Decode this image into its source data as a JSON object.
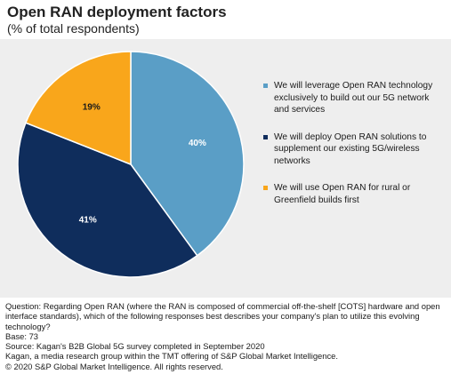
{
  "header": {
    "title": "Open RAN deployment factors",
    "subtitle": "(% of total respondents)"
  },
  "chart_data": {
    "type": "pie",
    "categories": [
      "We will leverage Open RAN technology exclusively to build out our 5G network and services",
      "We will deploy Open RAN solutions to supplement our existing 5G/wireless networks",
      "We will use Open RAN for rural or Greenfield builds first"
    ],
    "values": [
      40,
      41,
      19
    ],
    "value_labels": [
      "40%",
      "41%",
      "19%"
    ],
    "colors": [
      "#5a9ec6",
      "#0f2d5c",
      "#f9a61b"
    ],
    "label_colors": [
      "#ffffff",
      "#ffffff",
      "#1a1a1a"
    ],
    "legend_position": "right"
  },
  "footer": {
    "question": "Question: Regarding Open RAN (where the RAN is composed of commercial off-the-shelf [COTS] hardware and open interface standards), which of the following responses best describes your company's plan to utilize this evolving technology?",
    "base": "Base: 73",
    "source": "Source: Kagan's B2B Global 5G survey completed in September 2020",
    "kagan": "Kagan, a media research group within the TMT offering of S&P Global Market Intelligence.",
    "copyright": "© 2020 S&P Global Market Intelligence. All rights reserved."
  }
}
